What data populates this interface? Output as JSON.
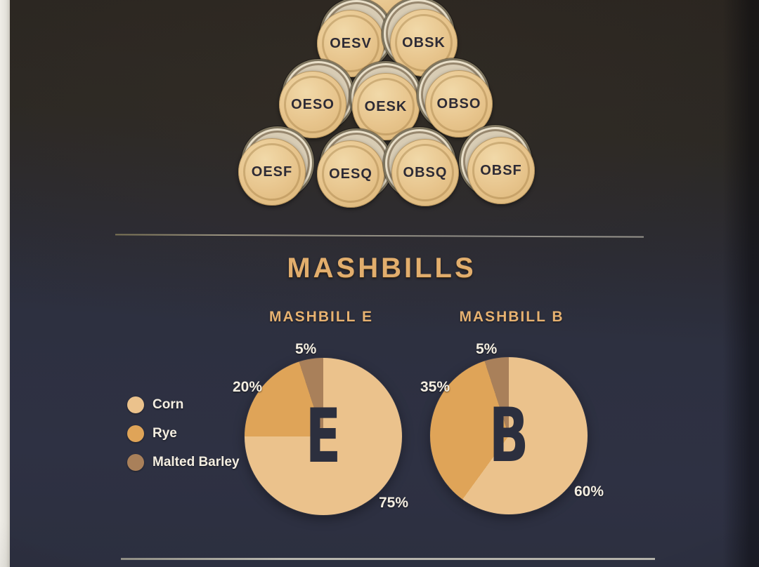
{
  "poster": {
    "section_title": "MASHBILLS",
    "colors": {
      "background_top": "#2a2520",
      "background_bottom": "#2e3143",
      "gold_text": "#e2ae6d",
      "white_text": "#f4eee1",
      "barrel_wood": "#e7c48c",
      "center_letter_navy": "#2c2f3e"
    }
  },
  "pyramid": {
    "rows": [
      [
        "OESV",
        "OBSK"
      ],
      [
        "OESO",
        "OESK",
        "OBSO"
      ],
      [
        "OESF",
        "OESQ",
        "OBSQ",
        "OBSF"
      ]
    ]
  },
  "legend": {
    "items": [
      {
        "label": "Corn",
        "color": "#ebc28c"
      },
      {
        "label": "Rye",
        "color": "#dfa458"
      },
      {
        "label": "Malted Barley",
        "color": "#a9805a"
      }
    ]
  },
  "chart_data": [
    {
      "type": "pie",
      "title": "MASHBILL E",
      "center_letter": "E",
      "start_angle": "12 o'clock",
      "direction": "clockwise",
      "slices": [
        {
          "label": "Corn",
          "value": 75,
          "percent_label": "75%",
          "color": "#ebc28c"
        },
        {
          "label": "Rye",
          "value": 20,
          "percent_label": "20%",
          "color": "#dfa458"
        },
        {
          "label": "Malted Barley",
          "value": 5,
          "percent_label": "5%",
          "color": "#a9805a"
        }
      ]
    },
    {
      "type": "pie",
      "title": "MASHBILL B",
      "center_letter": "B",
      "start_angle": "12 o'clock",
      "direction": "clockwise",
      "slices": [
        {
          "label": "Corn",
          "value": 60,
          "percent_label": "60%",
          "color": "#ebc28c"
        },
        {
          "label": "Rye",
          "value": 35,
          "percent_label": "35%",
          "color": "#dfa458"
        },
        {
          "label": "Malted Barley",
          "value": 5,
          "percent_label": "5%",
          "color": "#a9805a"
        }
      ]
    }
  ]
}
